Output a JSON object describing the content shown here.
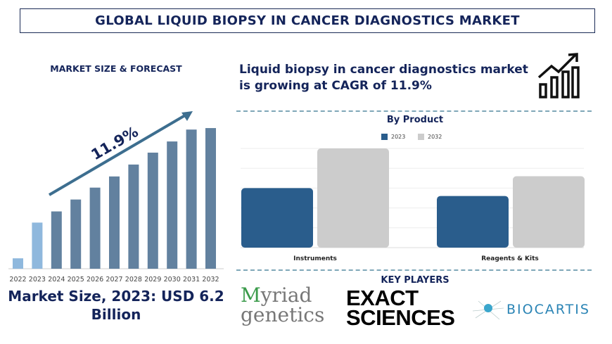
{
  "title": "GLOBAL LIQUID BIOPSY IN CANCER DIAGNOSTICS MARKET",
  "headline": "Liquid biopsy in cancer diagnostics market is growing at CAGR of 11.9%",
  "market_size": "Market Size, 2023: USD 6.2 Billion",
  "icon": "growth-chart-icon",
  "key_players_title": "KEY PLAYERS",
  "key_players": [
    "Myriad genetics",
    "EXACT SCIENCES",
    "BIOCARTIS"
  ],
  "chart_data": [
    {
      "type": "bar",
      "title": "MARKET SIZE & FORECAST",
      "annotation": "11.9%",
      "categories": [
        "2022",
        "2023",
        "2024",
        "2025",
        "2026",
        "2027",
        "2028",
        "2029",
        "2030",
        "2031",
        "2032"
      ],
      "values": [
        1.4,
        6.2,
        7.7,
        9.3,
        10.9,
        12.4,
        14.0,
        15.6,
        17.1,
        18.7,
        18.9
      ],
      "colors": [
        "#8fb8dd",
        "#8fb8dd",
        "#62819f",
        "#62819f",
        "#62819f",
        "#62819f",
        "#62819f",
        "#62819f",
        "#62819f",
        "#62819f",
        "#62819f"
      ],
      "grid": false
    },
    {
      "type": "bar",
      "title": "By Product",
      "categories": [
        "Instruments",
        "Reagents & Kits"
      ],
      "series": [
        {
          "name": "2023",
          "values": [
            3.0,
            2.6
          ],
          "color": "#2a5d8c"
        },
        {
          "name": "2032",
          "values": [
            5.0,
            3.6
          ],
          "color": "#cccccc"
        }
      ],
      "ylim": [
        0,
        5
      ],
      "grid": true,
      "legend": "top"
    }
  ]
}
